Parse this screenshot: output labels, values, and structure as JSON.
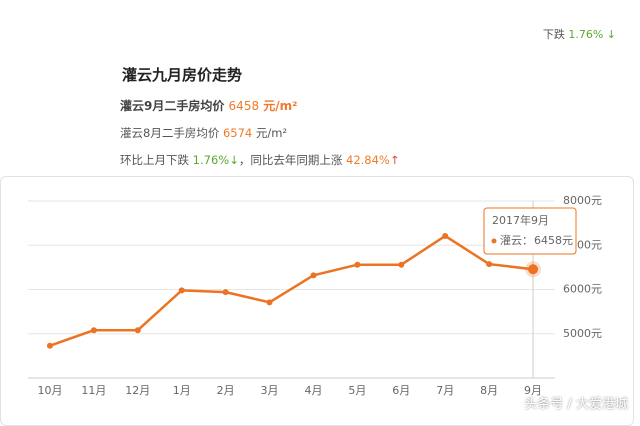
{
  "header": {
    "prefix": "下跌",
    "change": "1.76%",
    "arrow": "↓"
  },
  "article": {
    "title": "灌云九月房价走势",
    "line1": {
      "text": "灌云9月二手房均价",
      "price": "6458",
      "unit": "元/m²"
    },
    "line2": {
      "text": "灌云8月二手房均价",
      "price": "6574",
      "unit": "元/m²"
    },
    "line3": {
      "text1": "环比上月下跌",
      "mom": "1.76%",
      "arrow1": "↓",
      "text2": "，同比去年同期上涨",
      "yoy": "42.84%",
      "arrow2": "↑"
    }
  },
  "chart_data": {
    "type": "line",
    "categories": [
      "10月",
      "11月",
      "12月",
      "1月",
      "2月",
      "3月",
      "4月",
      "5月",
      "6月",
      "7月",
      "8月",
      "9月"
    ],
    "series": [
      {
        "name": "灌云",
        "color": "#ec7322",
        "values": [
          4730,
          5080,
          5080,
          5980,
          5940,
          5710,
          6320,
          6560,
          6560,
          7210,
          6574,
          6458
        ]
      }
    ],
    "ylim": [
      4000,
      8000
    ],
    "yticks": [
      {
        "value": 5000,
        "label": "5000元"
      },
      {
        "value": 6000,
        "label": "6000元"
      },
      {
        "value": 7000,
        "label": "7000元"
      },
      {
        "value": 8000,
        "label": "8000元"
      }
    ],
    "grid": true,
    "tooltip": {
      "title": "2017年9月",
      "label": "灌云：",
      "value": 6458,
      "value_label": "6458元"
    }
  },
  "watermark": "头条号 / 大爱港城"
}
